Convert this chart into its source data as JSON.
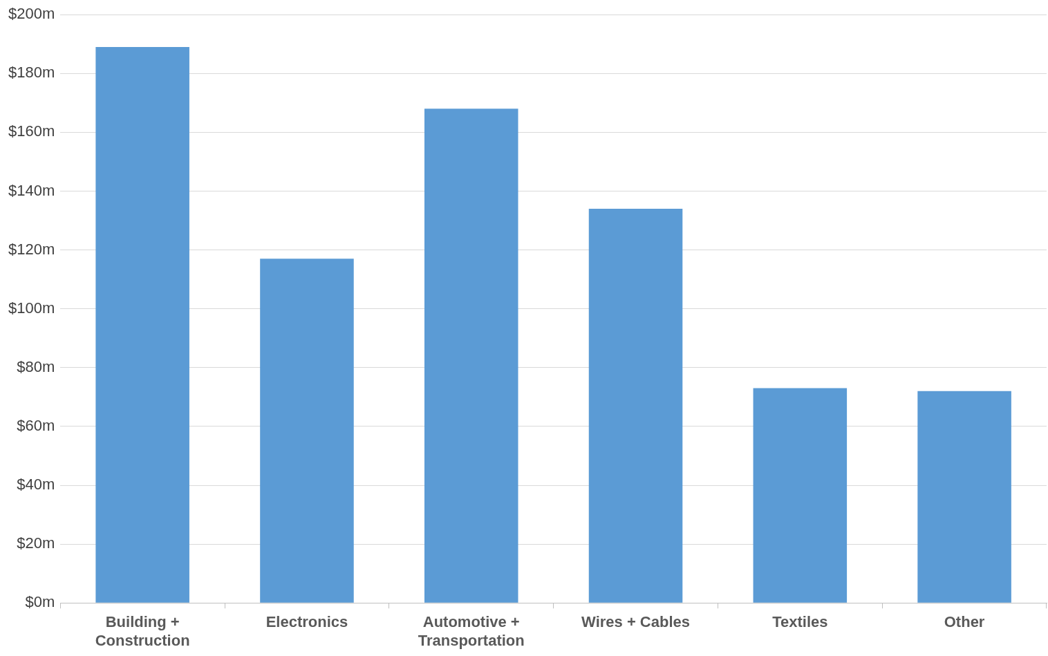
{
  "chart_data": {
    "type": "bar",
    "categories": [
      "Building + Construction",
      "Electronics",
      "Automotive + Transportation",
      "Wires + Cables",
      "Textiles",
      "Other"
    ],
    "values": [
      189,
      117,
      168,
      134,
      73,
      72
    ],
    "color": "#5b9bd5",
    "ylim": [
      0,
      200
    ],
    "yticks": [
      {
        "value": 0,
        "label": "$0m"
      },
      {
        "value": 20,
        "label": "$20m"
      },
      {
        "value": 40,
        "label": "$40m"
      },
      {
        "value": 60,
        "label": "$60m"
      },
      {
        "value": 80,
        "label": "$80m"
      },
      {
        "value": 100,
        "label": "$100m"
      },
      {
        "value": 120,
        "label": "$120m"
      },
      {
        "value": 140,
        "label": "$140m"
      },
      {
        "value": 160,
        "label": "$160m"
      },
      {
        "value": 180,
        "label": "$180m"
      },
      {
        "value": 200,
        "label": "$200m"
      }
    ],
    "grid": "y"
  }
}
